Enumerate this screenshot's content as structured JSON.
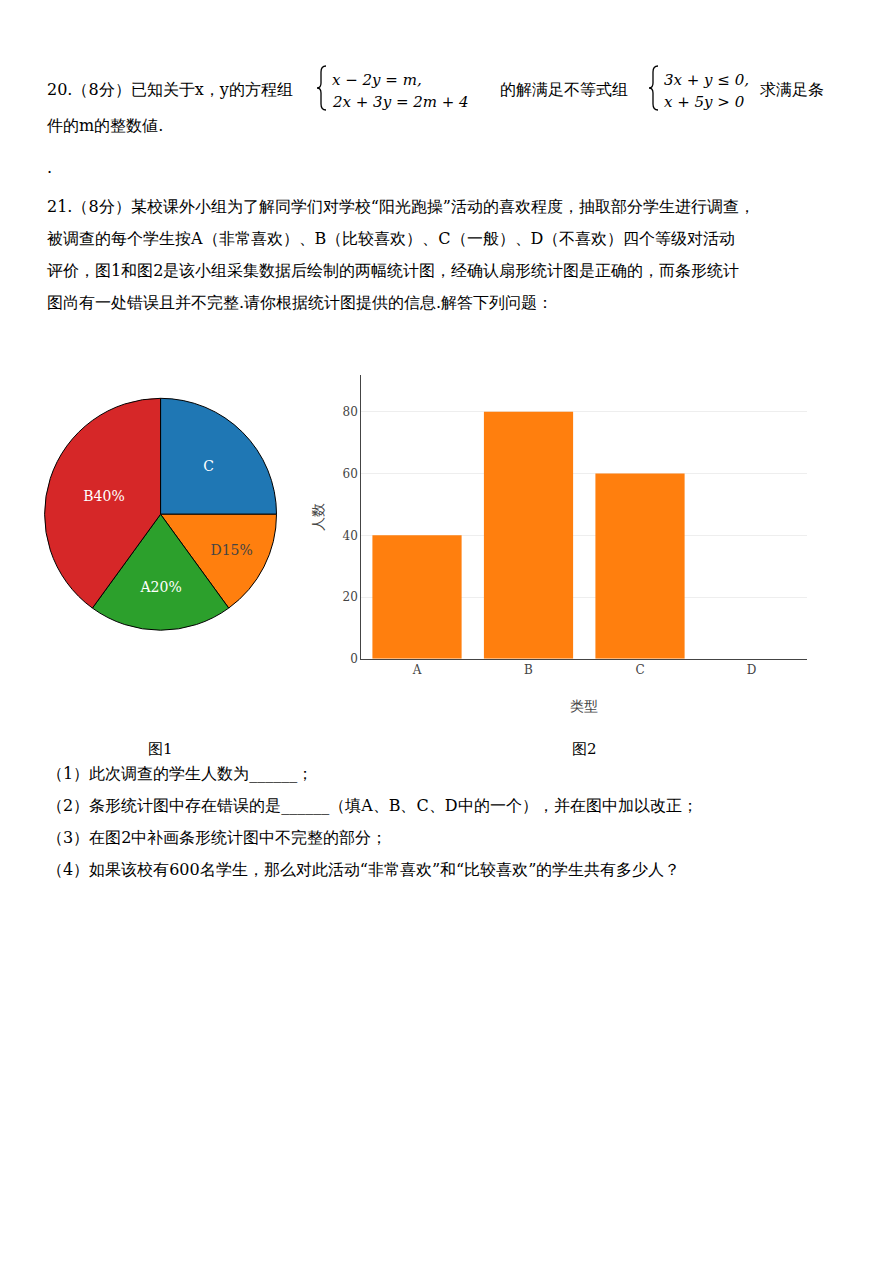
{
  "chart_data": [
    {
      "type": "pie",
      "title": "图1",
      "categories": [
        "C",
        "D15%",
        "A20%",
        "B40%"
      ],
      "values": [
        25,
        15,
        20,
        40
      ]
    },
    {
      "type": "bar",
      "title": "图2",
      "categories": [
        "A",
        "B",
        "C",
        "D"
      ],
      "values": [
        40,
        80,
        60,
        0
      ],
      "xlabel": "类型",
      "ylabel": "人数",
      "ylim": [
        0,
        92
      ],
      "yticks": [
        0,
        20,
        40,
        60,
        80
      ],
      "grid": true
    }
  ],
  "annotations": [
    "20.（8分）已知关于x，y的方程组",
    "x − 2y = m,",
    "2x + 3y = 2m + 4",
    "的解满足不等式组",
    "3x + y ≤ 0,",
    "x + 5y > 0",
    "求满足条",
    "件的m的整数値.",
    ".",
    "21.（8分）某校课外小组为了解同学们对学校“阳光跑操”活动的喜欢程度，抽取部分学生进行调查，",
    "被调查的每个学生按A（非常喜欢）、B（比较喜欢）、C（一般）、D（不喜欢）四个等级对活动",
    "评价，图1和图2是该小组采集数据后绘制的两幅统计图，经确认扇形统计图是正确的，而条形统计",
    "图尚有一处错误且并不完整.请你根据统计图提供的信息.解答下列问题：",
    "（1）此次调查的学生人数为______；",
    "（2）条形统计图中存在错误的是______（填A、B、C、D中的一个），并在图中加以改正；",
    "（3）在图2中补画条形统计图中不完整的部分；",
    "（4）如果该校有600名学生，那么对此活动“非常喜欢”和“比较喜欢”的学生共有多少人？"
  ]
}
